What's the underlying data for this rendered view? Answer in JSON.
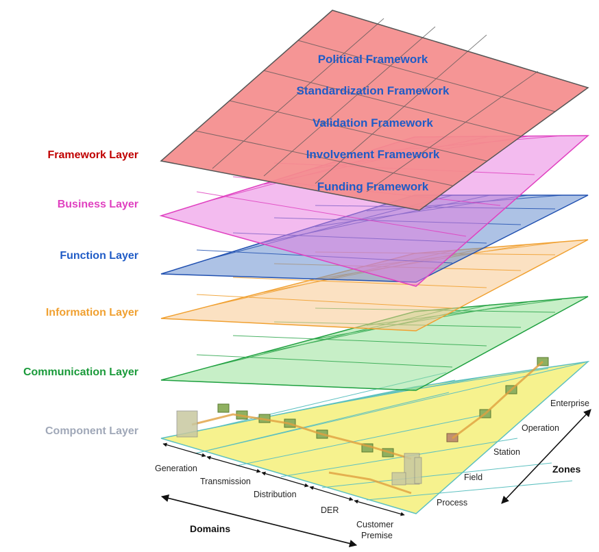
{
  "layers": [
    {
      "label": "Framework Layer",
      "color": "#c00000"
    },
    {
      "label": "Business Layer",
      "color": "#e040c0"
    },
    {
      "label": "Function Layer",
      "color": "#1f5bc6"
    },
    {
      "label": "Information Layer",
      "color": "#f0a030"
    },
    {
      "label": "Communication Layer",
      "color": "#1a9a3a"
    },
    {
      "label": "Component Layer",
      "color": "#a0a8b8"
    }
  ],
  "framework_items": [
    "Political  Framework",
    "Standardization  Framework",
    "Validation  Framework",
    "Involvement Framework",
    "Funding Framework"
  ],
  "domains": {
    "title": "Domains",
    "items": [
      "Generation",
      "Transmission",
      "Distribution",
      "DER",
      "Customer",
      "Premise"
    ]
  },
  "zones": {
    "title": "Zones",
    "items": [
      "Process",
      "Field",
      "Station",
      "Operation",
      "Enterprise"
    ]
  }
}
